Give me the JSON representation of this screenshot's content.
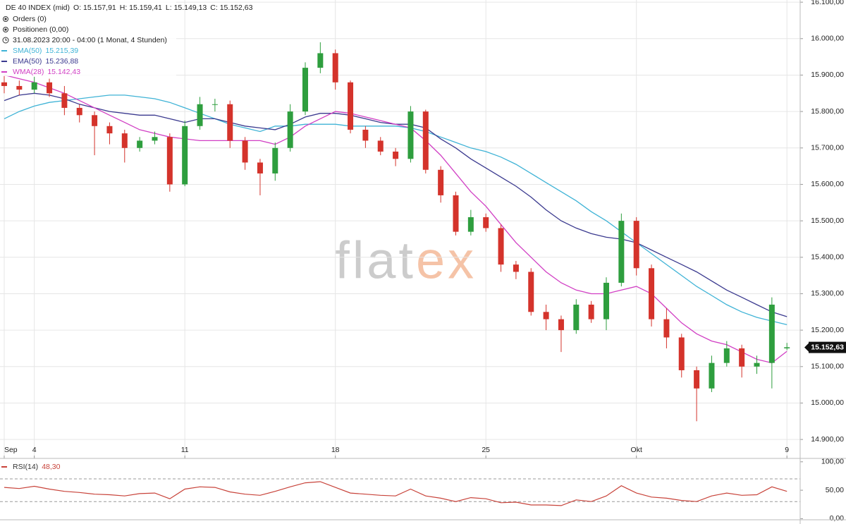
{
  "header": {
    "instrument": "DE 40 INDEX (mid)",
    "ohlc": [
      "O: 15.157,91",
      "H: 15.159,41",
      "L: 15.149,13",
      "C: 15.152,63"
    ],
    "orders": "Orders (0)",
    "positions": "Positionen (0,00)",
    "period": "31.08.2023 20:00 - 04:00  (1 Monat, 4 Stunden)"
  },
  "watermark": {
    "left": "flat",
    "right": "ex"
  },
  "chart_data": [
    {
      "type": "candlestick",
      "x": [
        0,
        0.5,
        1,
        1.5,
        2,
        2.5,
        3,
        3.5,
        4,
        4.5,
        5,
        5.5,
        6,
        6.5,
        7,
        7.5,
        8,
        8.5,
        9,
        9.5,
        10,
        10.5,
        11,
        11.5,
        12,
        12.5,
        13,
        13.5,
        14,
        14.5,
        15,
        15.5,
        16,
        16.5,
        17,
        17.5,
        18,
        18.5,
        19,
        19.5,
        20,
        20.5,
        21,
        21.5,
        22,
        22.5,
        23,
        23.5,
        24,
        24.5,
        25,
        25.5,
        26
      ],
      "open": [
        15880,
        15870,
        15860,
        15880,
        15850,
        15810,
        15790,
        15760,
        15740,
        15700,
        15720,
        15730,
        15600,
        15760,
        15820,
        15820,
        15720,
        15660,
        15630,
        15700,
        15800,
        15920,
        15960,
        15880,
        15750,
        15720,
        15690,
        15670,
        15800,
        15640,
        15570,
        15470,
        15510,
        15480,
        15380,
        15360,
        15250,
        15230,
        15200,
        15270,
        15230,
        15330,
        15500,
        15370,
        15230,
        15180,
        15090,
        15040,
        15110,
        15150,
        15100,
        15110,
        15150
      ],
      "high": [
        15900,
        15885,
        15895,
        15890,
        15870,
        15820,
        15800,
        15770,
        15750,
        15730,
        15745,
        15740,
        15775,
        15840,
        15835,
        15830,
        15730,
        15670,
        15715,
        15820,
        15935,
        15990,
        15970,
        15885,
        15760,
        15730,
        15700,
        15815,
        15805,
        15650,
        15580,
        15530,
        15520,
        15490,
        15390,
        15370,
        15270,
        15240,
        15285,
        15280,
        15345,
        15520,
        15510,
        15380,
        15260,
        15190,
        15100,
        15130,
        15170,
        15160,
        15130,
        15290,
        15165
      ],
      "low": [
        15850,
        15845,
        15850,
        15840,
        15790,
        15770,
        15680,
        15710,
        15660,
        15690,
        15710,
        15580,
        15595,
        15750,
        15800,
        15700,
        15640,
        15570,
        15610,
        15690,
        15790,
        15905,
        15860,
        15740,
        15700,
        15680,
        15650,
        15660,
        15630,
        15550,
        15460,
        15460,
        15470,
        15360,
        15340,
        15240,
        15200,
        15140,
        15190,
        15220,
        15200,
        15320,
        15350,
        15210,
        15150,
        15070,
        14950,
        15030,
        15100,
        15070,
        15080,
        15040,
        15145
      ],
      "close": [
        15870,
        15860,
        15880,
        15850,
        15810,
        15790,
        15760,
        15740,
        15700,
        15720,
        15730,
        15600,
        15760,
        15820,
        15820,
        15720,
        15660,
        15630,
        15700,
        15800,
        15920,
        15960,
        15880,
        15750,
        15720,
        15690,
        15670,
        15800,
        15640,
        15570,
        15470,
        15510,
        15480,
        15380,
        15360,
        15250,
        15230,
        15200,
        15270,
        15230,
        15330,
        15500,
        15370,
        15230,
        15180,
        15090,
        15040,
        15110,
        15150,
        15100,
        15110,
        15270,
        15153
      ],
      "up_color": "#2e9e3e",
      "down_color": "#d4332b",
      "series": [
        {
          "name": "SMA(50)",
          "value_label": "15.215,39",
          "color": "#3fb3d6",
          "values": [
            15780,
            15800,
            15815,
            15825,
            15830,
            15835,
            15840,
            15845,
            15845,
            15840,
            15835,
            15825,
            15810,
            15795,
            15780,
            15765,
            15755,
            15745,
            15760,
            15760,
            15765,
            15765,
            15765,
            15760,
            15760,
            15760,
            15760,
            15755,
            15745,
            15730,
            15715,
            15700,
            15690,
            15675,
            15655,
            15630,
            15605,
            15580,
            15555,
            15525,
            15500,
            15470,
            15440,
            15410,
            15380,
            15350,
            15320,
            15295,
            15270,
            15250,
            15235,
            15225,
            15215
          ]
        },
        {
          "name": "EMA(50)",
          "value_label": "15.236,88",
          "color": "#3b3a8f",
          "values": [
            15830,
            15845,
            15850,
            15845,
            15835,
            15820,
            15810,
            15800,
            15795,
            15790,
            15790,
            15780,
            15770,
            15780,
            15780,
            15770,
            15760,
            15755,
            15750,
            15765,
            15785,
            15795,
            15795,
            15790,
            15780,
            15770,
            15765,
            15765,
            15755,
            15725,
            15700,
            15670,
            15645,
            15620,
            15595,
            15565,
            15530,
            15500,
            15480,
            15465,
            15455,
            15450,
            15440,
            15420,
            15400,
            15380,
            15360,
            15335,
            15310,
            15290,
            15270,
            15250,
            15237
          ]
        },
        {
          "name": "WMA(28)",
          "value_label": "15.142,43",
          "color": "#d13fc4",
          "values": [
            15900,
            15890,
            15880,
            15865,
            15850,
            15830,
            15810,
            15790,
            15770,
            15750,
            15740,
            15730,
            15725,
            15720,
            15720,
            15720,
            15720,
            15720,
            15710,
            15730,
            15760,
            15780,
            15800,
            15795,
            15785,
            15775,
            15765,
            15755,
            15720,
            15680,
            15630,
            15580,
            15540,
            15490,
            15440,
            15400,
            15360,
            15330,
            15310,
            15300,
            15300,
            15310,
            15320,
            15300,
            15260,
            15220,
            15190,
            15170,
            15160,
            15140,
            15120,
            15110,
            15142
          ]
        }
      ],
      "last_price": {
        "value": 15152.63,
        "label": "15.152,63"
      },
      "xlim": [
        -0.14,
        26.44
      ],
      "xticks": [
        {
          "value": 0,
          "label": "Sep"
        },
        {
          "value": 1,
          "label": "4"
        },
        {
          "value": 6,
          "label": "11"
        },
        {
          "value": 11,
          "label": "18"
        },
        {
          "value": 16,
          "label": "25"
        },
        {
          "value": 21,
          "label": "Okt"
        },
        {
          "value": 26,
          "label": "9"
        }
      ],
      "ylim": [
        14848,
        16106
      ],
      "yticks": [
        {
          "value": 14900,
          "label": "14.900,00"
        },
        {
          "value": 15000,
          "label": "15.000,00"
        },
        {
          "value": 15100,
          "label": "15.100,00"
        },
        {
          "value": 15200,
          "label": "15.200,00"
        },
        {
          "value": 15300,
          "label": "15.300,00"
        },
        {
          "value": 15400,
          "label": "15.400,00"
        },
        {
          "value": 15500,
          "label": "15.500,00"
        },
        {
          "value": 15600,
          "label": "15.600,00"
        },
        {
          "value": 15700,
          "label": "15.700,00"
        },
        {
          "value": 15800,
          "label": "15.800,00"
        },
        {
          "value": 15900,
          "label": "15.900,00"
        },
        {
          "value": 16000,
          "label": "16.000,00"
        },
        {
          "value": 16100,
          "label": "16.100,00"
        }
      ],
      "grid": true
    },
    {
      "type": "line",
      "name": "RSI(14)",
      "value_label": "48,30",
      "color": "#c8433a",
      "x": [
        0,
        0.5,
        1,
        1.5,
        2,
        2.5,
        3,
        3.5,
        4,
        4.5,
        5,
        5.5,
        6,
        6.5,
        7,
        7.5,
        8,
        8.5,
        9,
        9.5,
        10,
        10.5,
        11,
        11.5,
        12,
        12.5,
        13,
        13.5,
        14,
        14.5,
        15,
        15.5,
        16,
        16.5,
        17,
        17.5,
        18,
        18.5,
        19,
        19.5,
        20,
        20.5,
        21,
        21.5,
        22,
        22.5,
        23,
        23.5,
        24,
        24.5,
        25,
        25.5,
        26
      ],
      "values": [
        55,
        53,
        57,
        52,
        48,
        46,
        43,
        42,
        40,
        44,
        45,
        35,
        52,
        56,
        55,
        47,
        43,
        41,
        48,
        56,
        63,
        65,
        55,
        45,
        43,
        41,
        40,
        52,
        40,
        36,
        30,
        37,
        35,
        28,
        29,
        24,
        24,
        23,
        33,
        30,
        40,
        58,
        45,
        38,
        36,
        32,
        30,
        40,
        45,
        41,
        42,
        56,
        48
      ],
      "levels": [
        70,
        30
      ],
      "xlim": [
        -0.14,
        26.44
      ],
      "ylim": [
        -2,
        101
      ],
      "yticks": [
        {
          "value": 0,
          "label": "0,00"
        },
        {
          "value": 50,
          "label": "50,00"
        },
        {
          "value": 100,
          "label": "100,00"
        }
      ]
    }
  ]
}
